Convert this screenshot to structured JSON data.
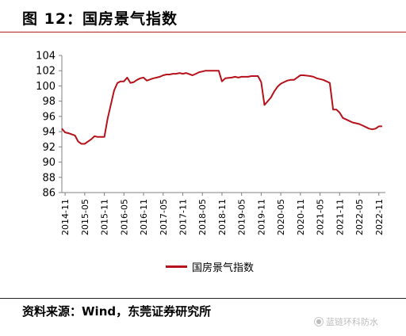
{
  "figure": {
    "title": "图 12：国房景气指数",
    "source": "资料来源：Wind，东莞证券研究所",
    "watermark_text": "蓝链环科防水",
    "watermark_icon": "wechat-icon"
  },
  "colors": {
    "series": "#b5121b",
    "axis": "#808080",
    "accent": "#b22222"
  },
  "chart_data": {
    "type": "line",
    "title": "图 12：国房景气指数",
    "xlabel": "",
    "ylabel": "",
    "ylim": [
      86,
      104
    ],
    "yticks": [
      86,
      88,
      90,
      92,
      94,
      96,
      98,
      100,
      102,
      104
    ],
    "xticks": [
      "2014-11",
      "2015-05",
      "2015-11",
      "2016-05",
      "2016-11",
      "2017-05",
      "2017-11",
      "2018-05",
      "2018-11",
      "2019-05",
      "2019-11",
      "2020-05",
      "2020-11",
      "2021-05",
      "2021-11",
      "2022-05",
      "2022-11"
    ],
    "grid": false,
    "legend": "bottom",
    "series": [
      {
        "name": "国房景气指数",
        "x": [
          "2014-10",
          "2014-11",
          "2014-12",
          "2015-02",
          "2015-03",
          "2015-04",
          "2015-05",
          "2015-06",
          "2015-07",
          "2015-08",
          "2015-09",
          "2015-10",
          "2015-11",
          "2015-12",
          "2016-02",
          "2016-03",
          "2016-04",
          "2016-05",
          "2016-06",
          "2016-07",
          "2016-08",
          "2016-09",
          "2016-10",
          "2016-11",
          "2016-12",
          "2017-02",
          "2017-03",
          "2017-04",
          "2017-05",
          "2017-06",
          "2017-07",
          "2017-08",
          "2017-09",
          "2017-10",
          "2017-11",
          "2017-12",
          "2018-02",
          "2018-03",
          "2018-04",
          "2018-05",
          "2018-06",
          "2018-07",
          "2018-08",
          "2018-09",
          "2018-10",
          "2018-11",
          "2018-12",
          "2019-02",
          "2019-03",
          "2019-04",
          "2019-05",
          "2019-06",
          "2019-07",
          "2019-08",
          "2019-09",
          "2019-10",
          "2019-11",
          "2019-12",
          "2020-02",
          "2020-03",
          "2020-04",
          "2020-05",
          "2020-06",
          "2020-07",
          "2020-08",
          "2020-09",
          "2020-10",
          "2020-11",
          "2020-12",
          "2021-02",
          "2021-03",
          "2021-04",
          "2021-05",
          "2021-06",
          "2021-07",
          "2021-08",
          "2021-09",
          "2021-10",
          "2021-11",
          "2021-12",
          "2022-02",
          "2022-03",
          "2022-04",
          "2022-05",
          "2022-06",
          "2022-07",
          "2022-08",
          "2022-09",
          "2022-10",
          "2022-11",
          "2022-12"
        ],
        "values": [
          94.4,
          93.9,
          93.8,
          93.5,
          92.7,
          92.4,
          92.4,
          92.7,
          93.0,
          93.4,
          93.3,
          93.3,
          93.3,
          95.7,
          99.4,
          100.4,
          100.6,
          100.6,
          101.1,
          100.4,
          100.5,
          100.8,
          101.0,
          101.1,
          100.7,
          101.0,
          101.1,
          101.2,
          101.4,
          101.5,
          101.5,
          101.6,
          101.6,
          101.7,
          101.6,
          101.7,
          101.4,
          101.6,
          101.8,
          101.9,
          102.0,
          102.0,
          102.0,
          102.0,
          102.0,
          100.6,
          101.0,
          101.1,
          101.2,
          101.1,
          101.2,
          101.2,
          101.2,
          101.3,
          101.3,
          101.3,
          100.5,
          97.5,
          98.5,
          99.3,
          99.9,
          100.3,
          100.5,
          100.7,
          100.8,
          100.8,
          101.1,
          101.4,
          101.4,
          101.3,
          101.2,
          101.0,
          100.9,
          100.8,
          100.6,
          100.4,
          96.9,
          96.9,
          96.5,
          95.8,
          95.4,
          95.2,
          95.1,
          95.0,
          94.8,
          94.6,
          94.4,
          94.3,
          94.4,
          94.7,
          94.7
        ]
      }
    ]
  },
  "legend": {
    "label": "国房景气指数"
  }
}
